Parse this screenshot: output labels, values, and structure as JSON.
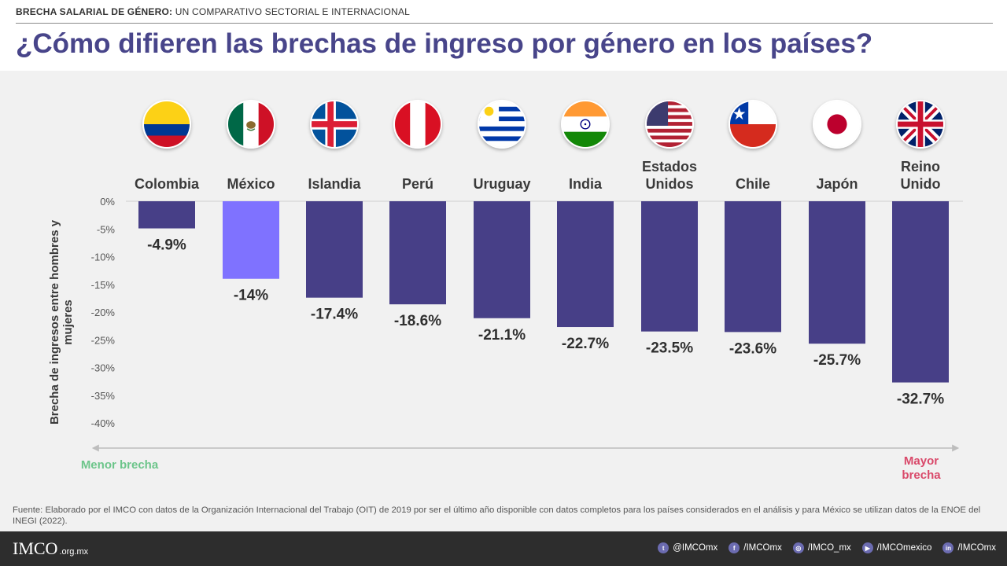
{
  "header": {
    "kicker_bold": "BRECHA SALARIAL DE GÉNERO:",
    "kicker_rest": " UN COMPARATIVO SECTORIAL E INTERNACIONAL",
    "title": "¿Cómo difieren las brechas de ingreso por género en los países?"
  },
  "colors": {
    "bar": "#473f87",
    "bar_highlight": "#7f72ff",
    "menor": "#6cc58a",
    "mayor": "#d9496a",
    "title": "#48458a"
  },
  "chart_data": {
    "type": "bar",
    "title": "",
    "ylabel": "Brecha de ingresos entre hombres y mujeres",
    "ylim": [
      -40,
      0
    ],
    "y_ticks": [
      "0%",
      "-5%",
      "-10%",
      "-15%",
      "-20%",
      "-25%",
      "-30%",
      "-35%",
      "-40%"
    ],
    "categories": [
      "Colombia",
      "México",
      "Islandia",
      "Perú",
      "Uruguay",
      "India",
      "Estados Unidos",
      "Chile",
      "Japón",
      "Reino Unido"
    ],
    "category_lines": [
      [
        "Colombia"
      ],
      [
        "México"
      ],
      [
        "Islandia"
      ],
      [
        "Perú"
      ],
      [
        "Uruguay"
      ],
      [
        "India"
      ],
      [
        "Estados",
        "Unidos"
      ],
      [
        "Chile"
      ],
      [
        "Japón"
      ],
      [
        "Reino",
        "Unido"
      ]
    ],
    "values": [
      -4.9,
      -14,
      -17.4,
      -18.6,
      -21.1,
      -22.7,
      -23.5,
      -23.6,
      -25.7,
      -32.7
    ],
    "data_labels": [
      "-4.9%",
      "-14%",
      "-17.4%",
      "-18.6%",
      "-21.1%",
      "-22.7%",
      "-23.5%",
      "-23.6%",
      "-25.7%",
      "-32.7%"
    ],
    "highlight": "México",
    "grid": false
  },
  "flags": [
    "colombia-flag-icon",
    "mexico-flag-icon",
    "iceland-flag-icon",
    "peru-flag-icon",
    "uruguay-flag-icon",
    "india-flag-icon",
    "usa-flag-icon",
    "chile-flag-icon",
    "japan-flag-icon",
    "uk-flag-icon"
  ],
  "scale": {
    "left_label": "Menor brecha",
    "right_label": "Mayor brecha"
  },
  "source": "Fuente: Elaborado por el IMCO  con datos de la Organización Internacional del Trabajo (OIT) de 2019 por ser el último año disponible con datos completos para los países considerados en el análisis y para México  se utilizan datos de la ENOE del INEGI (2022).",
  "footer": {
    "logo": "IMCO",
    "domain": ".org.mx",
    "socials": [
      {
        "icon": "twitter-icon",
        "glyph": "t",
        "label": "@IMCOmx"
      },
      {
        "icon": "facebook-icon",
        "glyph": "f",
        "label": "/IMCOmx"
      },
      {
        "icon": "instagram-icon",
        "glyph": "◎",
        "label": "/IMCO_mx"
      },
      {
        "icon": "youtube-icon",
        "glyph": "▶",
        "label": "/IMCOmexico"
      },
      {
        "icon": "linkedin-icon",
        "glyph": "in",
        "label": "/IMCOmx"
      }
    ]
  }
}
